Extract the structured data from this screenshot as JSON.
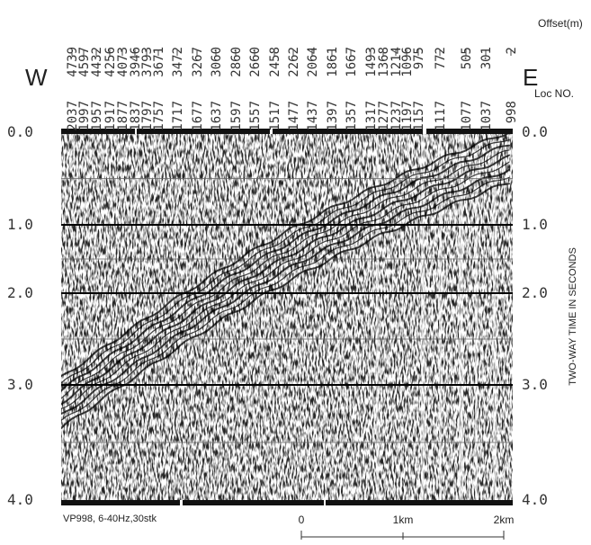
{
  "header": {
    "west": "W",
    "east": "E",
    "offset_label": "Offset(m)",
    "loc_label": "Loc NO."
  },
  "offsets": [
    "4739",
    "4597",
    "4432",
    "4256",
    "4073",
    "3946",
    "3793",
    "3671",
    "3472",
    "3267",
    "3060",
    "2860",
    "2660",
    "2458",
    "2262",
    "2064",
    "1861",
    "1667",
    "1493",
    "1368",
    "1214",
    "1096",
    "975",
    "772",
    "505",
    "301",
    "2"
  ],
  "locations": [
    "2037",
    "1997",
    "1957",
    "1917",
    "1877",
    "1837",
    "1797",
    "1757",
    "1717",
    "1677",
    "1637",
    "1597",
    "1557",
    "1517",
    "1477",
    "1437",
    "1397",
    "1357",
    "1317",
    "1277",
    "1237",
    "1197",
    "1157",
    "1117",
    "1077",
    "1037",
    "998"
  ],
  "time_axis": {
    "title": "TWO-WAY TIME IN SECONDS",
    "ticks": [
      "0.0",
      "1.0",
      "2.0",
      "3.0",
      "4.0"
    ]
  },
  "caption": "VP998, 6-40Hz,30stk",
  "scale_bar": [
    "0",
    "1km",
    "2km"
  ]
}
